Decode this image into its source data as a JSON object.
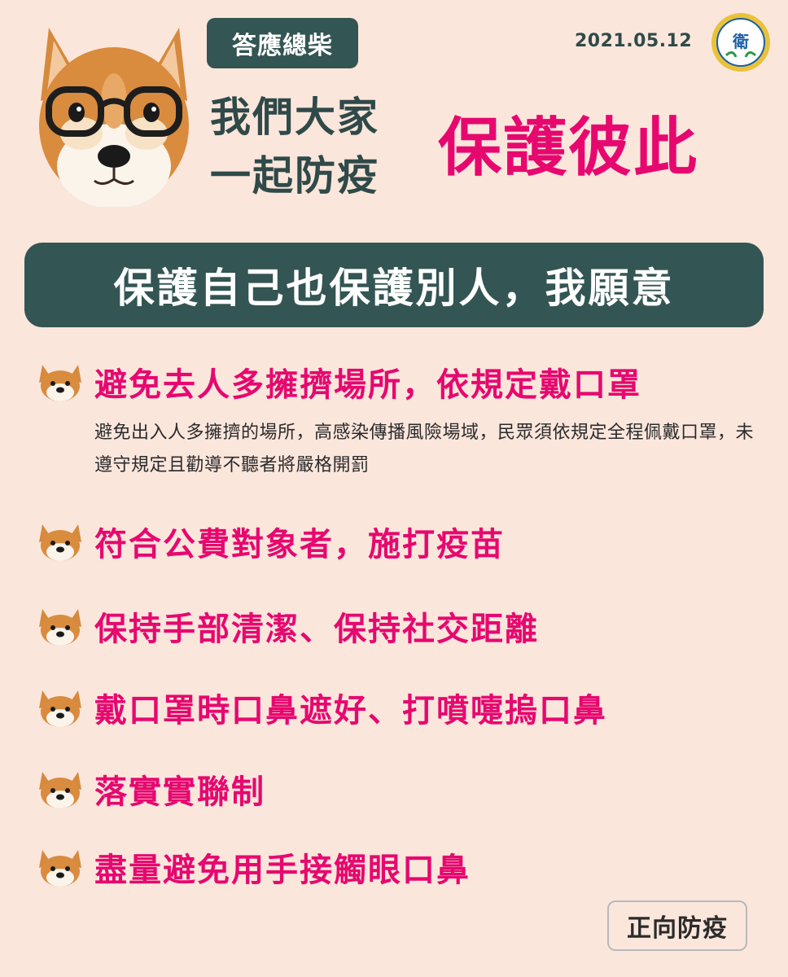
{
  "header": {
    "tag": "答應總柴",
    "date": "2021.05.12",
    "title_left_line1": "我們大家",
    "title_left_line2": "一起防疫",
    "title_right": "保護彼此"
  },
  "banner": "保護自己也保護別人，我願意",
  "items": [
    {
      "heading": "避免去人多擁擠場所，依規定戴口罩",
      "description": "避免出入人多擁擠的場所，高感染傳播風險場域，民眾須依規定全程佩戴口罩，未遵守規定且勸導不聽者將嚴格開罰"
    },
    {
      "heading": "符合公費對象者，施打疫苗"
    },
    {
      "heading": "保持手部清潔、保持社交距離"
    },
    {
      "heading": "戴口罩時口鼻遮好、打噴嚏摀口鼻"
    },
    {
      "heading": "落實實聯制"
    },
    {
      "heading": "盡量避免用手接觸眼口鼻"
    }
  ],
  "footer_tag": "正向防疫",
  "colors": {
    "background": "#fbe6dc",
    "dark_teal": "#335553",
    "accent_pink": "#e6086f"
  },
  "icons": {
    "mascot": "shiba-dog-with-glasses-icon",
    "bullet": "shiba-dog-face-icon",
    "seal": "ministry-of-health-seal-icon"
  }
}
